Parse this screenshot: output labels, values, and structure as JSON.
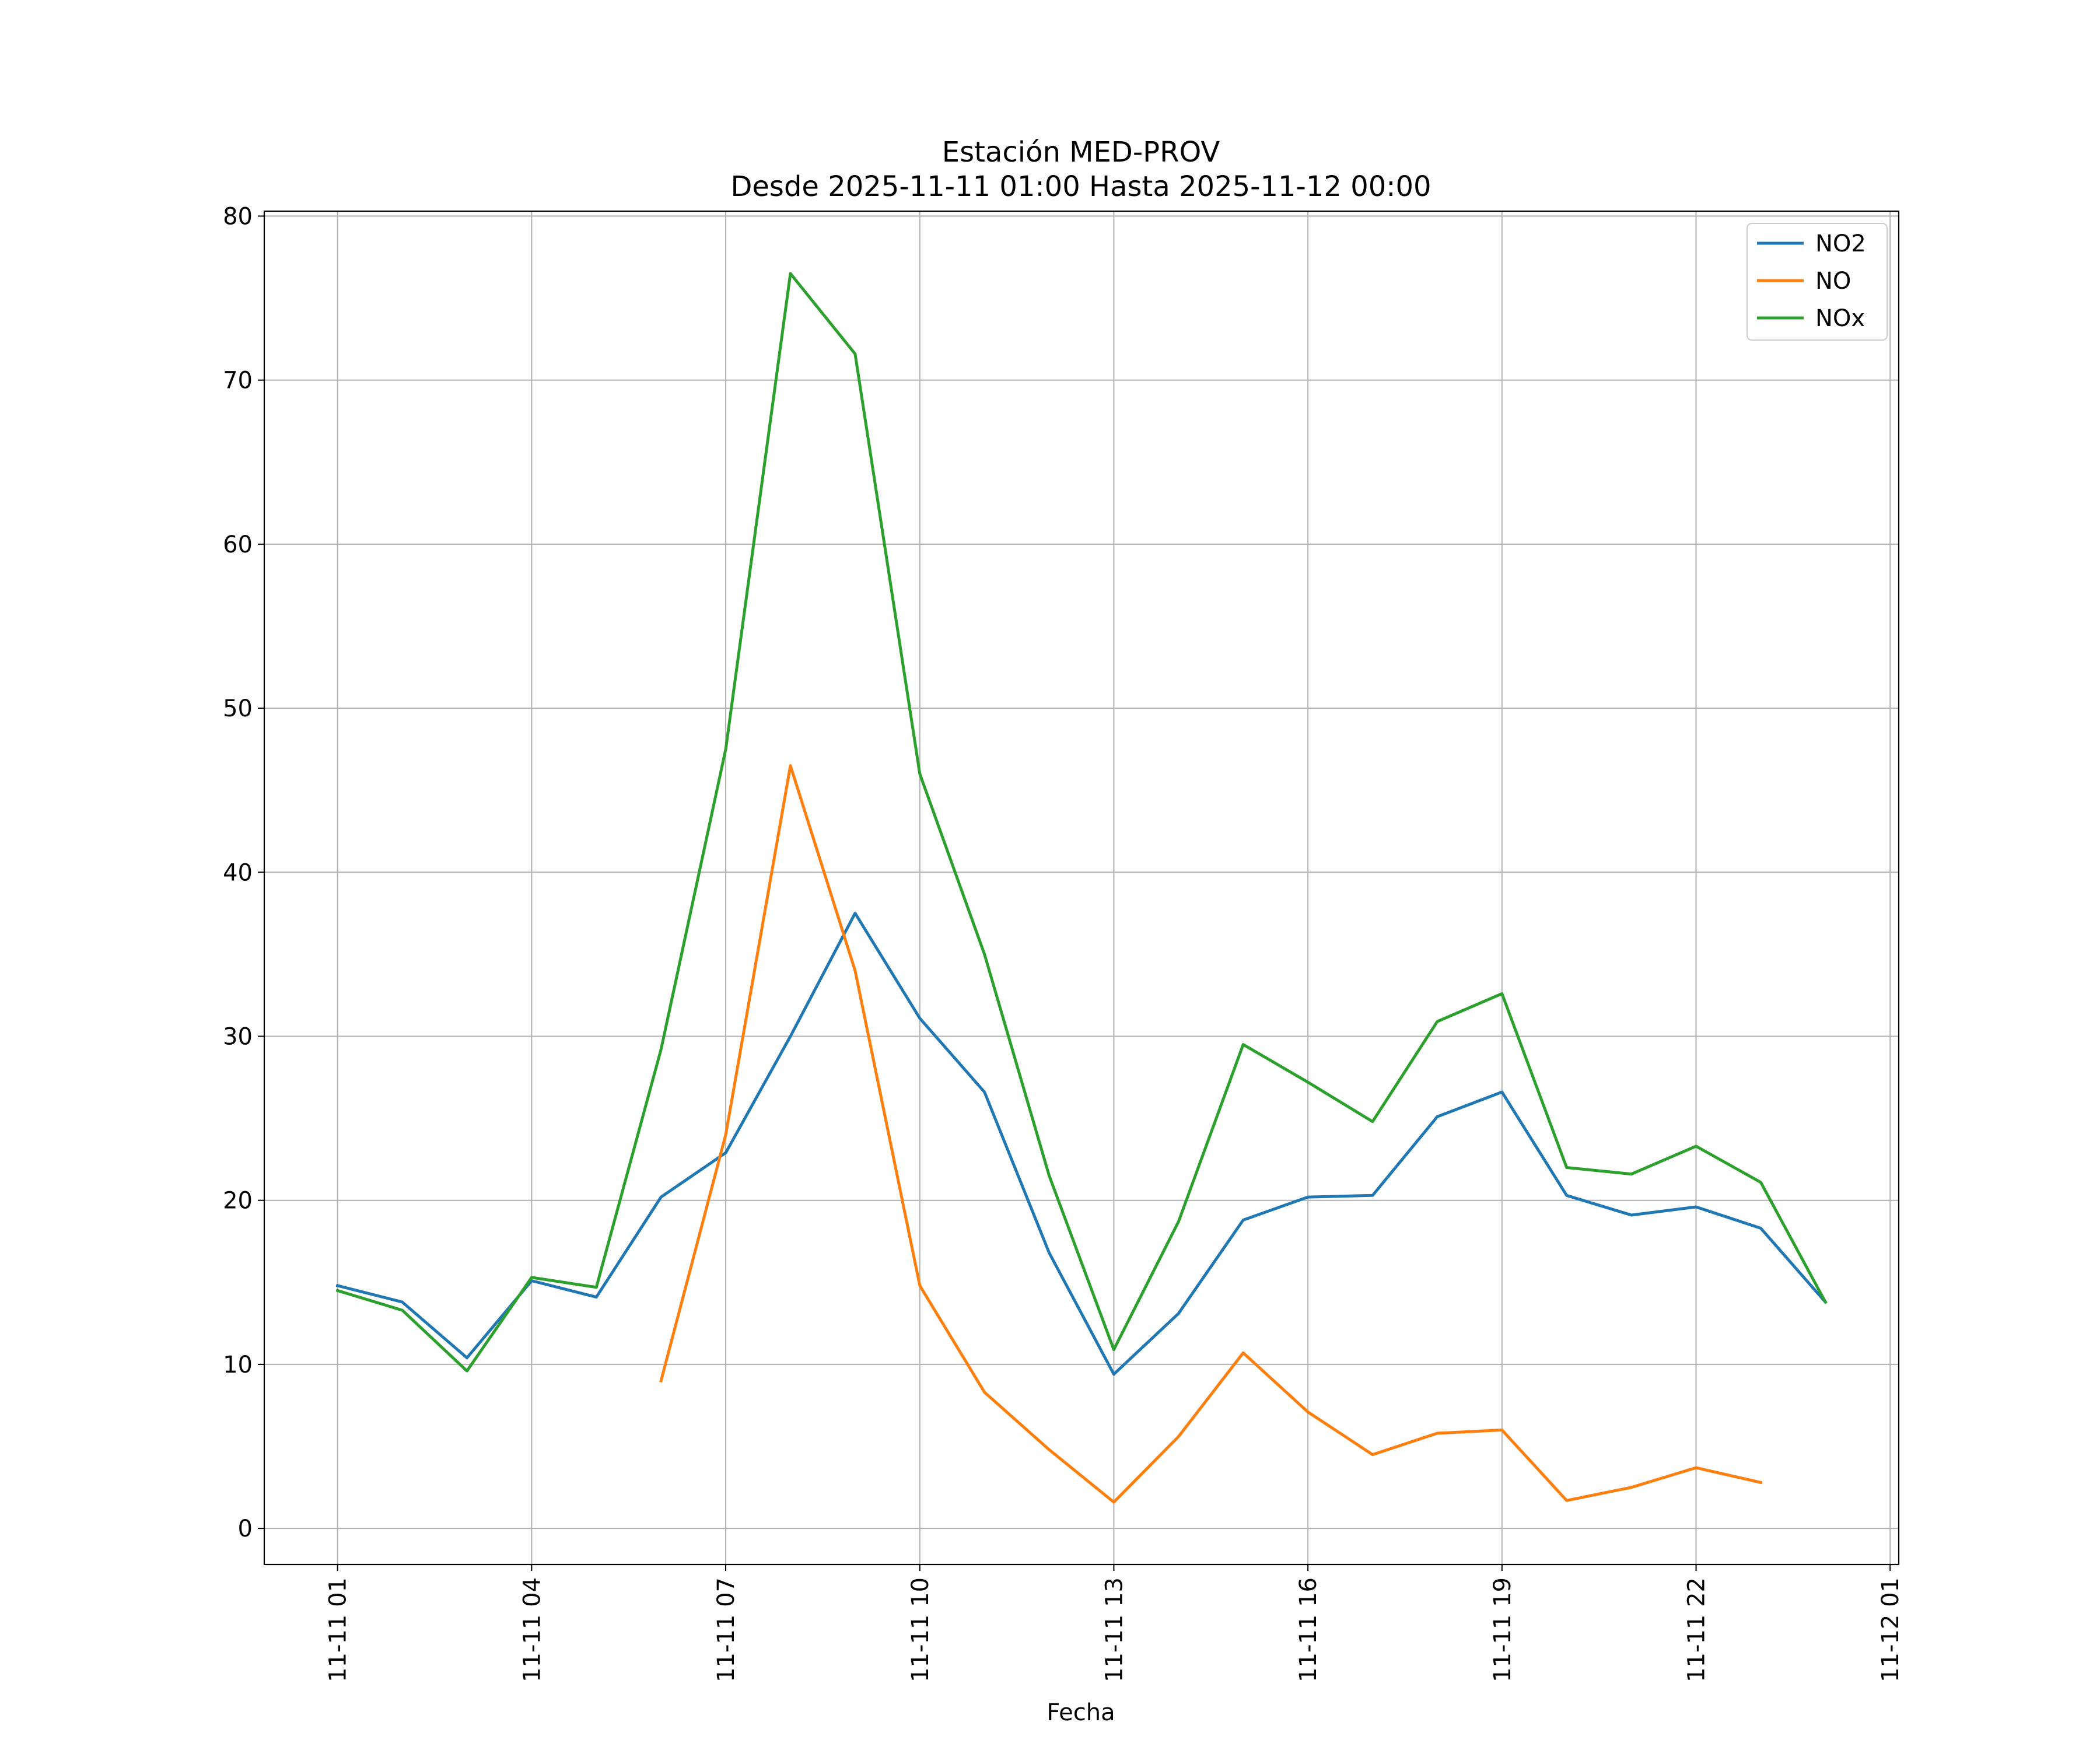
{
  "chart_data": {
    "type": "line",
    "title_line1": "Estación MED-PROV",
    "title_line2": "Desde 2025-11-11 01:00 Hasta 2025-11-12 00:00",
    "xlabel": "Fecha",
    "ylabel": "",
    "grid": true,
    "legend_position": "top-right",
    "x": [
      "2025-11-11 01:00",
      "2025-11-11 02:00",
      "2025-11-11 03:00",
      "2025-11-11 04:00",
      "2025-11-11 05:00",
      "2025-11-11 06:00",
      "2025-11-11 07:00",
      "2025-11-11 08:00",
      "2025-11-11 09:00",
      "2025-11-11 10:00",
      "2025-11-11 11:00",
      "2025-11-11 12:00",
      "2025-11-11 13:00",
      "2025-11-11 14:00",
      "2025-11-11 15:00",
      "2025-11-11 16:00",
      "2025-11-11 17:00",
      "2025-11-11 18:00",
      "2025-11-11 19:00",
      "2025-11-11 20:00",
      "2025-11-11 21:00",
      "2025-11-11 22:00",
      "2025-11-11 23:00",
      "2025-11-12 00:00"
    ],
    "xlim": [
      "2025-11-10 23:52",
      "2025-11-12 01:08"
    ],
    "xticks": [
      "2025-11-11 01:00",
      "2025-11-11 04:00",
      "2025-11-11 07:00",
      "2025-11-11 10:00",
      "2025-11-11 13:00",
      "2025-11-11 16:00",
      "2025-11-11 19:00",
      "2025-11-11 22:00",
      "2025-11-12 01:00"
    ],
    "xtick_labels": [
      "11-11 01",
      "11-11 04",
      "11-11 07",
      "11-11 10",
      "11-11 13",
      "11-11 16",
      "11-11 19",
      "11-11 22",
      "11-12 01"
    ],
    "ylim": [
      -2.2,
      80.3
    ],
    "yticks": [
      0,
      10,
      20,
      30,
      40,
      50,
      60,
      70,
      80
    ],
    "ytick_labels": [
      "0",
      "10",
      "20",
      "30",
      "40",
      "50",
      "60",
      "70",
      "80"
    ],
    "series": [
      {
        "name": "NO2",
        "color": "#1f77b4",
        "values": [
          14.8,
          13.8,
          10.4,
          15.1,
          14.1,
          20.2,
          22.9,
          30.0,
          37.5,
          31.1,
          26.6,
          16.8,
          9.4,
          13.1,
          18.8,
          20.2,
          20.3,
          25.1,
          26.6,
          20.3,
          19.1,
          19.6,
          18.3,
          13.8
        ]
      },
      {
        "name": "NO",
        "color": "#ff7f0e",
        "values": [
          null,
          null,
          null,
          null,
          null,
          9.0,
          24.0,
          46.5,
          34.0,
          14.8,
          8.3,
          4.8,
          1.6,
          5.6,
          10.7,
          7.1,
          4.5,
          5.8,
          6.0,
          1.7,
          2.5,
          3.7,
          2.8,
          null
        ]
      },
      {
        "name": "NOx",
        "color": "#2ca02c",
        "values": [
          14.5,
          13.3,
          9.6,
          15.3,
          14.7,
          29.2,
          47.5,
          76.5,
          71.6,
          46.0,
          35.0,
          21.5,
          10.9,
          18.7,
          29.5,
          27.2,
          24.8,
          30.9,
          32.6,
          22.0,
          21.6,
          23.3,
          21.1,
          13.8
        ]
      }
    ]
  }
}
